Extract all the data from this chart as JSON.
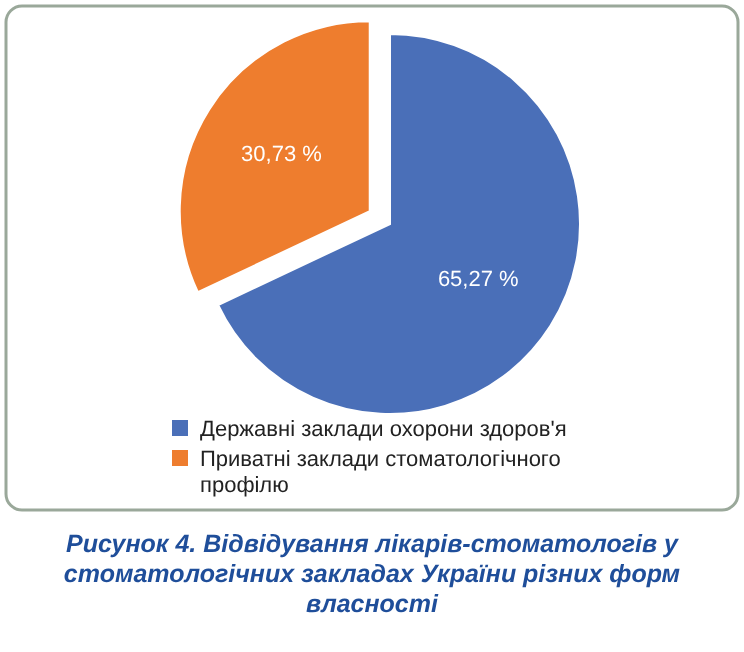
{
  "chart_data": {
    "type": "pie",
    "title": "Рисунок 4. Відвідування лікарів-стоматологів у стоматологічних закладах України різних форм власності",
    "categories": [
      "Державні заклади охорони здоров'я",
      "Приватні заклади стоматологічного профілю"
    ],
    "values": [
      65.27,
      30.73
    ],
    "colors": [
      "#4a6fb8",
      "#ee7d2e"
    ],
    "value_labels": [
      "65,27 %",
      "30,73 %"
    ],
    "legend": "bottom"
  }
}
